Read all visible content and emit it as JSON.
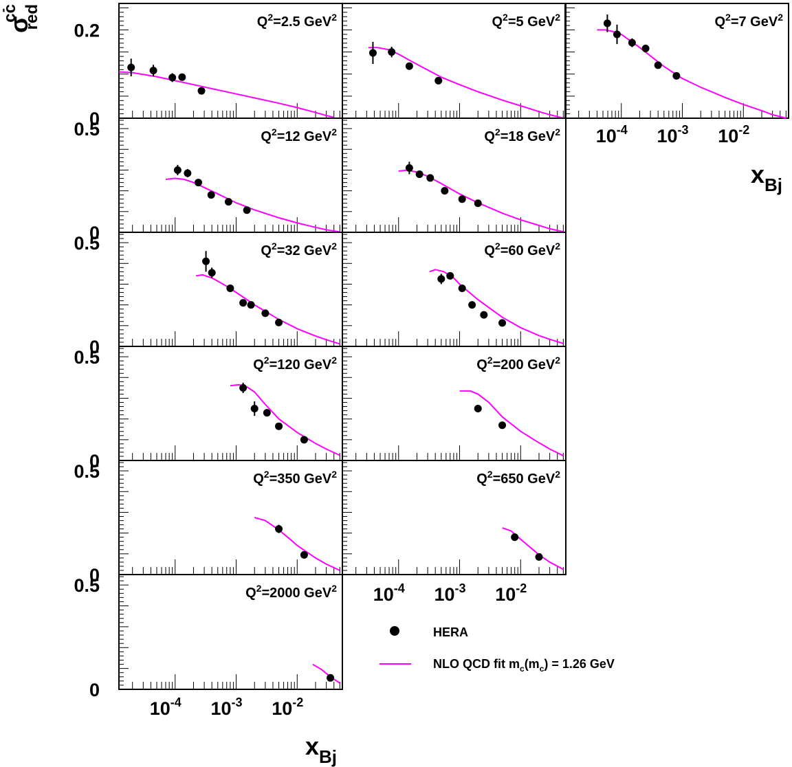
{
  "figure": {
    "y_axis_title": {
      "base": "σ",
      "sup": "cc",
      "overline": "-",
      "sub": "red"
    },
    "x_axis_title": {
      "base": "x",
      "sub": "Bj"
    }
  },
  "legend": {
    "items": [
      {
        "marker": "dot",
        "label": "HERA",
        "color": "#000000"
      },
      {
        "marker": "line",
        "label_parts": [
          "NLO QCD fit m",
          "c",
          "(m",
          "c",
          ") = 1.26 GeV"
        ],
        "color": "#ff00ff"
      }
    ]
  },
  "colors": {
    "data": "#000000",
    "fit": "#ff00ff",
    "frame": "#000000"
  },
  "x_tick_labels": [
    {
      "base": "10",
      "exp": "-4"
    },
    {
      "base": "10",
      "exp": "-3"
    },
    {
      "base": "10",
      "exp": "-2"
    }
  ],
  "chart_data": [
    {
      "type": "scatter",
      "label": "Q²=2.5 GeV²",
      "q2": "2.5",
      "xscale": "log",
      "xlim": [
        1.2e-05,
        0.055
      ],
      "ylim": [
        0,
        0.26
      ],
      "yticks": [
        "0",
        "0.2"
      ],
      "points": [
        {
          "x": 1.9e-05,
          "y": 0.115,
          "err": 0.02
        },
        {
          "x": 4.4e-05,
          "y": 0.108,
          "err": 0.013
        },
        {
          "x": 9e-05,
          "y": 0.092,
          "err": 0.01
        },
        {
          "x": 0.00013,
          "y": 0.093,
          "err": 0.008
        },
        {
          "x": 0.00027,
          "y": 0.062,
          "err": 0.004
        }
      ],
      "fit": [
        [
          1.2e-05,
          0.105
        ],
        [
          2e-05,
          0.103
        ],
        [
          5e-05,
          0.094
        ],
        [
          0.0001,
          0.085
        ],
        [
          0.0002,
          0.076
        ],
        [
          0.0005,
          0.064
        ],
        [
          0.001,
          0.055
        ],
        [
          0.002,
          0.046
        ],
        [
          0.005,
          0.034
        ],
        [
          0.01,
          0.024
        ],
        [
          0.02,
          0.013
        ],
        [
          0.03,
          0.006
        ],
        [
          0.04,
          0.002
        ]
      ]
    },
    {
      "type": "scatter",
      "label": "Q²=5 GeV²",
      "q2": "5",
      "xscale": "log",
      "xlim": [
        1.2e-05,
        0.055
      ],
      "ylim": [
        0,
        0.26
      ],
      "yticks": [],
      "points": [
        {
          "x": 3.8e-05,
          "y": 0.148,
          "err": 0.025
        },
        {
          "x": 7.7e-05,
          "y": 0.15,
          "err": 0.012
        },
        {
          "x": 0.00015,
          "y": 0.118,
          "err": 0.008
        },
        {
          "x": 0.00045,
          "y": 0.085,
          "err": 0.004
        }
      ],
      "fit": [
        [
          3.2e-05,
          0.16
        ],
        [
          4.5e-05,
          0.16
        ],
        [
          7e-05,
          0.155
        ],
        [
          0.0001,
          0.145
        ],
        [
          0.0002,
          0.122
        ],
        [
          0.0005,
          0.093
        ],
        [
          0.001,
          0.076
        ],
        [
          0.002,
          0.06
        ],
        [
          0.005,
          0.041
        ],
        [
          0.01,
          0.028
        ],
        [
          0.02,
          0.015
        ],
        [
          0.03,
          0.008
        ],
        [
          0.05,
          0.0
        ]
      ]
    },
    {
      "type": "scatter",
      "label": "Q²=7 GeV²",
      "q2": "7",
      "xscale": "log",
      "xlim": [
        1.2e-05,
        0.055
      ],
      "ylim": [
        0,
        0.26
      ],
      "yticks": [],
      "points": [
        {
          "x": 5.9e-05,
          "y": 0.215,
          "err": 0.02
        },
        {
          "x": 8.5e-05,
          "y": 0.19,
          "err": 0.022
        },
        {
          "x": 0.00015,
          "y": 0.171,
          "err": 0.01
        },
        {
          "x": 0.00025,
          "y": 0.158,
          "err": 0.008
        },
        {
          "x": 0.0004,
          "y": 0.12,
          "err": 0.006
        },
        {
          "x": 0.0008,
          "y": 0.096,
          "err": 0.004
        }
      ],
      "fit": [
        [
          4e-05,
          0.2
        ],
        [
          5.5e-05,
          0.2
        ],
        [
          7e-05,
          0.197
        ],
        [
          0.0001,
          0.19
        ],
        [
          0.0002,
          0.16
        ],
        [
          0.0005,
          0.117
        ],
        [
          0.001,
          0.09
        ],
        [
          0.002,
          0.07
        ],
        [
          0.005,
          0.047
        ],
        [
          0.01,
          0.031
        ],
        [
          0.02,
          0.017
        ],
        [
          0.03,
          0.008
        ],
        [
          0.05,
          0.0
        ]
      ]
    },
    {
      "type": "scatter",
      "label": "Q²=12 GeV²",
      "q2": "12",
      "xscale": "log",
      "xlim": [
        1.2e-05,
        0.055
      ],
      "ylim": [
        0,
        0.55
      ],
      "yticks": [
        "0",
        "0.5"
      ],
      "points": [
        {
          "x": 0.00011,
          "y": 0.3,
          "err": 0.025
        },
        {
          "x": 0.00016,
          "y": 0.285,
          "err": 0.02
        },
        {
          "x": 0.00024,
          "y": 0.24,
          "err": 0.01
        },
        {
          "x": 0.00039,
          "y": 0.18,
          "err": 0.008
        },
        {
          "x": 0.00075,
          "y": 0.147,
          "err": 0.006
        },
        {
          "x": 0.0015,
          "y": 0.107,
          "err": 0.005
        }
      ],
      "fit": [
        [
          7e-05,
          0.255
        ],
        [
          0.0001,
          0.26
        ],
        [
          0.00014,
          0.255
        ],
        [
          0.0002,
          0.24
        ],
        [
          0.0005,
          0.185
        ],
        [
          0.001,
          0.142
        ],
        [
          0.002,
          0.108
        ],
        [
          0.005,
          0.07
        ],
        [
          0.01,
          0.045
        ],
        [
          0.02,
          0.024
        ],
        [
          0.03,
          0.012
        ],
        [
          0.05,
          0.002
        ]
      ]
    },
    {
      "type": "scatter",
      "label": "Q²=18 GeV²",
      "q2": "18",
      "xscale": "log",
      "xlim": [
        1.2e-05,
        0.055
      ],
      "ylim": [
        0,
        0.55
      ],
      "yticks": [],
      "points": [
        {
          "x": 0.00015,
          "y": 0.31,
          "err": 0.03
        },
        {
          "x": 0.00022,
          "y": 0.28,
          "err": 0.015
        },
        {
          "x": 0.00033,
          "y": 0.262,
          "err": 0.01
        },
        {
          "x": 0.00057,
          "y": 0.2,
          "err": 0.008
        },
        {
          "x": 0.0011,
          "y": 0.16,
          "err": 0.006
        },
        {
          "x": 0.002,
          "y": 0.14,
          "err": 0.006
        }
      ],
      "fit": [
        [
          0.0001,
          0.295
        ],
        [
          0.00014,
          0.3
        ],
        [
          0.0002,
          0.29
        ],
        [
          0.0003,
          0.27
        ],
        [
          0.0005,
          0.235
        ],
        [
          0.001,
          0.185
        ],
        [
          0.002,
          0.142
        ],
        [
          0.005,
          0.092
        ],
        [
          0.01,
          0.06
        ],
        [
          0.02,
          0.033
        ],
        [
          0.03,
          0.017
        ],
        [
          0.05,
          0.003
        ]
      ]
    },
    {
      "type": "scatter",
      "label": "Q²=32 GeV²",
      "q2": "32",
      "xscale": "log",
      "xlim": [
        1.2e-05,
        0.055
      ],
      "ylim": [
        0,
        0.55
      ],
      "yticks": [
        "0",
        "0.5"
      ],
      "points": [
        {
          "x": 0.00032,
          "y": 0.41,
          "err": 0.05
        },
        {
          "x": 0.0004,
          "y": 0.355,
          "err": 0.025
        },
        {
          "x": 0.0008,
          "y": 0.28,
          "err": 0.012
        },
        {
          "x": 0.0013,
          "y": 0.21,
          "err": 0.008
        },
        {
          "x": 0.00175,
          "y": 0.2,
          "err": 0.008
        },
        {
          "x": 0.003,
          "y": 0.16,
          "err": 0.007
        },
        {
          "x": 0.005,
          "y": 0.115,
          "err": 0.006
        }
      ],
      "fit": [
        [
          0.00022,
          0.34
        ],
        [
          0.00028,
          0.345
        ],
        [
          0.0004,
          0.33
        ],
        [
          0.0007,
          0.29
        ],
        [
          0.001,
          0.26
        ],
        [
          0.002,
          0.2
        ],
        [
          0.005,
          0.13
        ],
        [
          0.01,
          0.085
        ],
        [
          0.02,
          0.05
        ],
        [
          0.03,
          0.032
        ],
        [
          0.05,
          0.012
        ]
      ]
    },
    {
      "type": "scatter",
      "label": "Q²=60 GeV²",
      "q2": "60",
      "xscale": "log",
      "xlim": [
        1.2e-05,
        0.055
      ],
      "ylim": [
        0,
        0.55
      ],
      "yticks": [],
      "points": [
        {
          "x": 0.0005,
          "y": 0.325,
          "err": 0.025
        },
        {
          "x": 0.0007,
          "y": 0.34,
          "err": 0.012
        },
        {
          "x": 0.0011,
          "y": 0.28,
          "err": 0.01
        },
        {
          "x": 0.0016,
          "y": 0.2,
          "err": 0.008
        },
        {
          "x": 0.0025,
          "y": 0.152,
          "err": 0.007
        },
        {
          "x": 0.005,
          "y": 0.113,
          "err": 0.006
        }
      ],
      "fit": [
        [
          0.00032,
          0.36
        ],
        [
          0.0004,
          0.37
        ],
        [
          0.00055,
          0.36
        ],
        [
          0.0008,
          0.33
        ],
        [
          0.001,
          0.3
        ],
        [
          0.002,
          0.225
        ],
        [
          0.005,
          0.14
        ],
        [
          0.01,
          0.09
        ],
        [
          0.02,
          0.052
        ],
        [
          0.03,
          0.034
        ],
        [
          0.05,
          0.014
        ]
      ]
    },
    {
      "type": "scatter",
      "label": "Q²=120 GeV²",
      "q2": "120",
      "xscale": "log",
      "xlim": [
        1.2e-05,
        0.055
      ],
      "ylim": [
        0,
        0.55
      ],
      "yticks": [
        "0",
        "0.5"
      ],
      "points": [
        {
          "x": 0.0013,
          "y": 0.35,
          "err": 0.025
        },
        {
          "x": 0.002,
          "y": 0.25,
          "err": 0.035
        },
        {
          "x": 0.0032,
          "y": 0.23,
          "err": 0.012
        },
        {
          "x": 0.005,
          "y": 0.165,
          "err": 0.008
        },
        {
          "x": 0.013,
          "y": 0.1,
          "err": 0.006
        }
      ],
      "fit": [
        [
          0.0008,
          0.36
        ],
        [
          0.0011,
          0.365
        ],
        [
          0.0015,
          0.355
        ],
        [
          0.002,
          0.33
        ],
        [
          0.003,
          0.27
        ],
        [
          0.005,
          0.2
        ],
        [
          0.01,
          0.135
        ],
        [
          0.02,
          0.082
        ],
        [
          0.03,
          0.055
        ],
        [
          0.05,
          0.025
        ]
      ]
    },
    {
      "type": "scatter",
      "label": "Q²=200 GeV²",
      "q2": "200",
      "xscale": "log",
      "xlim": [
        1.2e-05,
        0.055
      ],
      "ylim": [
        0,
        0.55
      ],
      "yticks": [],
      "points": [
        {
          "x": 0.002,
          "y": 0.25,
          "err": 0.018
        },
        {
          "x": 0.005,
          "y": 0.17,
          "err": 0.008
        }
      ],
      "fit": [
        [
          0.001,
          0.335
        ],
        [
          0.0015,
          0.335
        ],
        [
          0.002,
          0.32
        ],
        [
          0.003,
          0.28
        ],
        [
          0.005,
          0.21
        ],
        [
          0.01,
          0.14
        ],
        [
          0.02,
          0.085
        ],
        [
          0.03,
          0.055
        ],
        [
          0.05,
          0.023
        ]
      ]
    },
    {
      "type": "scatter",
      "label": "Q²=350 GeV²",
      "q2": "350",
      "xscale": "log",
      "xlim": [
        1.2e-05,
        0.055
      ],
      "ylim": [
        0,
        0.55
      ],
      "yticks": [
        "0",
        "0.5"
      ],
      "points": [
        {
          "x": 0.005,
          "y": 0.22,
          "err": 0.02
        },
        {
          "x": 0.013,
          "y": 0.095,
          "err": 0.006
        }
      ],
      "fit": [
        [
          0.002,
          0.275
        ],
        [
          0.003,
          0.26
        ],
        [
          0.005,
          0.215
        ],
        [
          0.008,
          0.165
        ],
        [
          0.01,
          0.14
        ],
        [
          0.02,
          0.08
        ],
        [
          0.03,
          0.05
        ],
        [
          0.05,
          0.02
        ]
      ]
    },
    {
      "type": "scatter",
      "label": "Q²=650 GeV²",
      "q2": "650",
      "xscale": "log",
      "xlim": [
        1.2e-05,
        0.055
      ],
      "ylim": [
        0,
        0.55
      ],
      "yticks": [],
      "points": [
        {
          "x": 0.008,
          "y": 0.18,
          "err": 0.018
        },
        {
          "x": 0.02,
          "y": 0.085,
          "err": 0.006
        }
      ],
      "fit": [
        [
          0.005,
          0.225
        ],
        [
          0.007,
          0.21
        ],
        [
          0.01,
          0.17
        ],
        [
          0.02,
          0.095
        ],
        [
          0.03,
          0.06
        ],
        [
          0.05,
          0.025
        ]
      ]
    },
    {
      "type": "scatter",
      "label": "Q²=2000 GeV²",
      "q2": "2000",
      "xscale": "log",
      "xlim": [
        1.2e-05,
        0.055
      ],
      "ylim": [
        0,
        0.55
      ],
      "yticks": [
        "0",
        "0.5"
      ],
      "points": [
        {
          "x": 0.035,
          "y": 0.055,
          "err": 0.005
        }
      ],
      "fit": [
        [
          0.018,
          0.12
        ],
        [
          0.025,
          0.095
        ],
        [
          0.035,
          0.06
        ],
        [
          0.05,
          0.03
        ]
      ]
    }
  ]
}
